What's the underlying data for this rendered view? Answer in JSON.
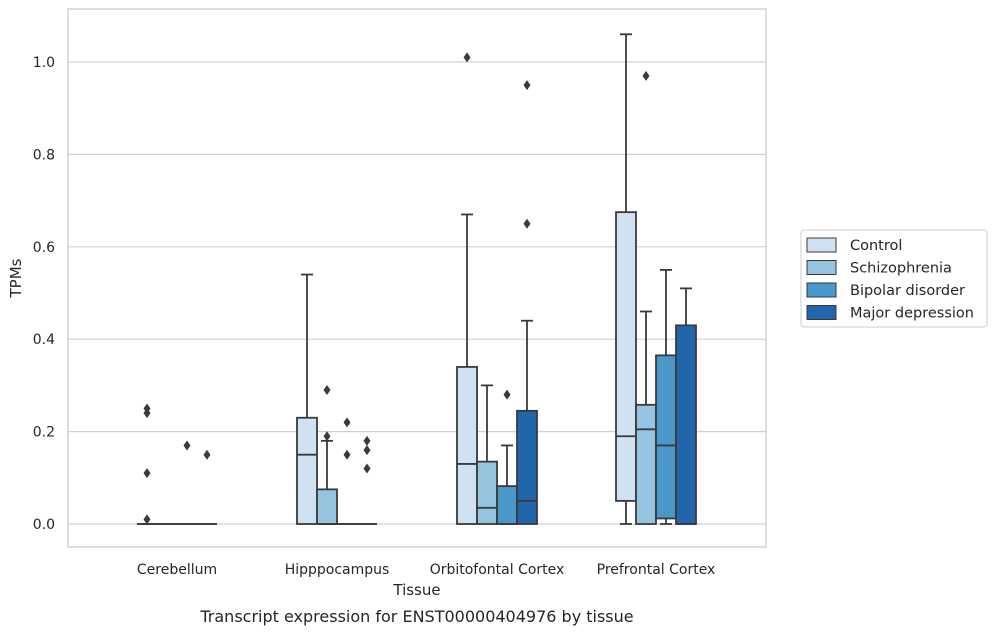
{
  "chart_data": {
    "type": "box",
    "xlabel": "Tissue",
    "ylabel": "TPMs",
    "caption": "Transcript expression for ENST00000404976 by tissue",
    "ylim": [
      -0.05,
      1.12
    ],
    "yticks": [
      0.0,
      0.2,
      0.4,
      0.6,
      0.8,
      1.0
    ],
    "ytick_labels": [
      "0.0",
      "0.2",
      "0.4",
      "0.6",
      "0.8",
      "1.0"
    ],
    "grid": "horizontal",
    "legend_position": "right",
    "categories": [
      "Cerebellum",
      "Hipppocampus",
      "Orbitofontal Cortex",
      "Prefrontal Cortex"
    ],
    "series": [
      {
        "name": "Control",
        "color": "#d0e1f2",
        "boxes": [
          {
            "whislo": 0,
            "q1": 0,
            "med": 0,
            "q3": 0,
            "whishi": 0,
            "fliers": [
              0.01,
              0.11,
              0.24,
              0.25
            ]
          },
          {
            "whislo": 0,
            "q1": 0,
            "med": 0.15,
            "q3": 0.23,
            "whishi": 0.54,
            "fliers": []
          },
          {
            "whislo": 0,
            "q1": 0,
            "med": 0.13,
            "q3": 0.34,
            "whishi": 0.67,
            "fliers": [
              1.01
            ]
          },
          {
            "whislo": 0,
            "q1": 0.05,
            "med": 0.19,
            "q3": 0.675,
            "whishi": 1.06,
            "fliers": []
          }
        ]
      },
      {
        "name": "Schizophrenia",
        "color": "#94c4df",
        "boxes": [
          {
            "whislo": 0,
            "q1": 0,
            "med": 0,
            "q3": 0,
            "whishi": 0,
            "fliers": []
          },
          {
            "whislo": 0,
            "q1": 0,
            "med": 0,
            "q3": 0.075,
            "whishi": 0.18,
            "fliers": [
              0.19,
              0.29
            ]
          },
          {
            "whislo": 0,
            "q1": 0,
            "med": 0.035,
            "q3": 0.135,
            "whishi": 0.3,
            "fliers": []
          },
          {
            "whislo": 0,
            "q1": 0,
            "med": 0.205,
            "q3": 0.258,
            "whishi": 0.46,
            "fliers": [
              0.97
            ]
          }
        ]
      },
      {
        "name": "Bipolar disorder",
        "color": "#4a98c9",
        "boxes": [
          {
            "whislo": 0,
            "q1": 0,
            "med": 0,
            "q3": 0,
            "whishi": 0,
            "fliers": [
              0.17
            ]
          },
          {
            "whislo": 0,
            "q1": 0,
            "med": 0,
            "q3": 0,
            "whishi": 0,
            "fliers": [
              0.15,
              0.22
            ]
          },
          {
            "whislo": 0,
            "q1": 0,
            "med": 0,
            "q3": 0.082,
            "whishi": 0.17,
            "fliers": [
              0.28
            ]
          },
          {
            "whislo": 0,
            "q1": 0.012,
            "med": 0.17,
            "q3": 0.365,
            "whishi": 0.55,
            "fliers": []
          }
        ]
      },
      {
        "name": "Major depression",
        "color": "#2165ab",
        "boxes": [
          {
            "whislo": 0,
            "q1": 0,
            "med": 0,
            "q3": 0,
            "whishi": 0,
            "fliers": [
              0.15
            ]
          },
          {
            "whislo": 0,
            "q1": 0,
            "med": 0,
            "q3": 0,
            "whishi": 0,
            "fliers": [
              0.12,
              0.16,
              0.18
            ]
          },
          {
            "whislo": 0,
            "q1": 0,
            "med": 0.05,
            "q3": 0.245,
            "whishi": 0.44,
            "fliers": [
              0.65,
              0.95
            ]
          },
          {
            "whislo": 0,
            "q1": 0,
            "med": 0,
            "q3": 0.43,
            "whishi": 0.51,
            "fliers": []
          }
        ]
      }
    ]
  }
}
